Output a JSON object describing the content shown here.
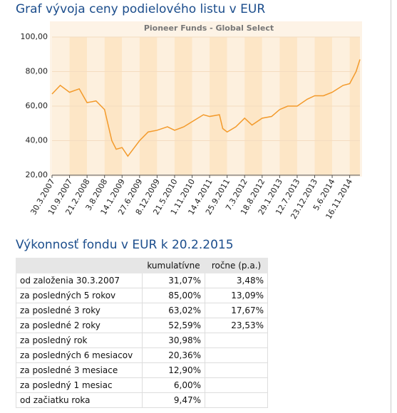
{
  "heading": "Graf vývoja ceny podielového listu v EUR",
  "chart_data": {
    "type": "line",
    "title": "Pioneer Funds - Global Select",
    "xlim": [
      "30.3.2007",
      "20.2.2015"
    ],
    "xticks": [
      "30.3.2007",
      "10.9.2007",
      "21.2.2008",
      "3.8.2008",
      "14.1.2009",
      "27.6.2009",
      "8.12.2009",
      "21.5.2010",
      "1.11.2010",
      "14.4.2011",
      "25.9.2011",
      "7.3.2012",
      "18.8.2012",
      "29.1.2013",
      "12.7.2013",
      "23.12.2013",
      "5.6.2014",
      "16.11.2014"
    ],
    "ylim": [
      20,
      100
    ],
    "yticks": [
      {
        "value": 20,
        "label": "20,00"
      },
      {
        "value": 40,
        "label": "40,00"
      },
      {
        "value": 60,
        "label": "60,00"
      },
      {
        "value": 80,
        "label": "80,00"
      },
      {
        "value": 100,
        "label": "100,00"
      }
    ],
    "x": [
      "30.3.2007",
      "15.6.2007",
      "10.9.2007",
      "10.12.2007",
      "21.2.2008",
      "15.5.2008",
      "3.8.2008",
      "10.10.2008",
      "20.11.2008",
      "14.1.2009",
      "9.3.2009",
      "27.6.2009",
      "15.9.2009",
      "8.12.2009",
      "15.3.2010",
      "21.5.2010",
      "15.8.2010",
      "1.11.2010",
      "15.2.2011",
      "14.4.2011",
      "15.7.2011",
      "15.8.2011",
      "25.9.2011",
      "15.12.2011",
      "7.3.2012",
      "15.5.2012",
      "18.8.2012",
      "15.11.2012",
      "29.1.2013",
      "15.4.2013",
      "12.7.2013",
      "15.10.2013",
      "23.12.2013",
      "15.3.2014",
      "5.6.2014",
      "15.9.2014",
      "16.11.2014",
      "15.1.2015",
      "20.2.2015"
    ],
    "series": [
      {
        "color": "#f39a2b",
        "values": [
          67,
          72,
          68,
          70,
          62,
          63,
          58,
          40,
          35,
          36,
          31,
          40,
          45,
          46,
          48,
          46,
          48,
          51,
          55,
          54,
          55,
          47,
          45,
          48,
          53,
          49,
          53,
          54,
          58,
          60,
          60,
          64,
          66,
          66,
          68,
          72,
          73,
          80,
          87
        ]
      }
    ]
  },
  "table": {
    "title": "Výkonnosť fondu v EUR k 20.2.2015",
    "header": [
      "kumulatívne",
      "ročne (p.a.)"
    ],
    "rows": [
      [
        "od založenia 30.3.2007",
        "31,07%",
        "3,48%"
      ],
      [
        "za posledných 5 rokov",
        "85,00%",
        "13,09%"
      ],
      [
        "za posledné 3 roky",
        "63,02%",
        "17,67%"
      ],
      [
        "za posledné 2 roky",
        "52,59%",
        "23,53%"
      ],
      [
        "za posledný rok",
        "30,98%"
      ],
      [
        "za posledných 6 mesiacov",
        "20,36%"
      ],
      [
        "za posledné 3 mesiace",
        "12,90%"
      ],
      [
        "za posledný 1 mesiac",
        "6,00%"
      ],
      [
        "od začiatku roka",
        "9,47%"
      ]
    ]
  }
}
